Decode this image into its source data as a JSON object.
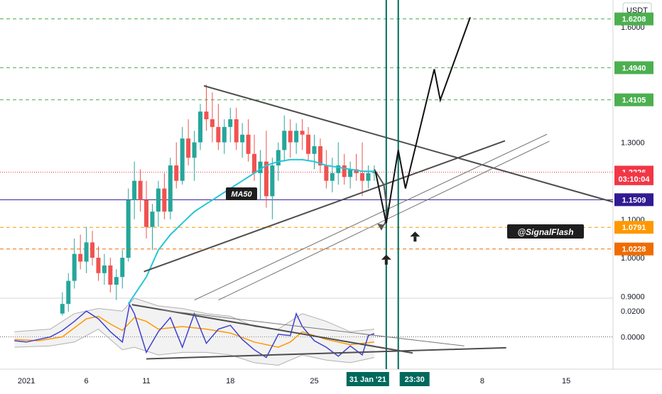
{
  "chart_data": {
    "type": "candlestick",
    "currency": "USDT",
    "price_axis": {
      "ticks": [
        {
          "label": "1.6000",
          "value": 1.6
        },
        {
          "label": "1.3000",
          "value": 1.3
        },
        {
          "label": "1.1000",
          "value": 1.1
        },
        {
          "label": "1.0000",
          "value": 1.0
        },
        {
          "label": "0.9000",
          "value": 0.9
        }
      ],
      "range": [
        0.895,
        1.67
      ]
    },
    "oscillator_axis": {
      "ticks": [
        {
          "label": "0.0200",
          "value": 0.02
        },
        {
          "label": "0.0000",
          "value": 0.0
        }
      ],
      "range": [
        -0.025,
        0.03
      ]
    },
    "time_axis": {
      "ticks": [
        {
          "label": "2021",
          "day": 1
        },
        {
          "label": "6",
          "day": 6
        },
        {
          "label": "11",
          "day": 11
        },
        {
          "label": "18",
          "day": 18
        },
        {
          "label": "25",
          "day": 25
        },
        {
          "label": "8",
          "day": 39
        },
        {
          "label": "15",
          "day": 46
        }
      ],
      "range_days": [
        -1.2,
        49.9
      ]
    },
    "price_levels": [
      {
        "label": "1.6208",
        "value": 1.6208,
        "color": "#4caf50",
        "style": "dashed"
      },
      {
        "label": "1.4940",
        "value": 1.494,
        "color": "#4caf50",
        "style": "dashed"
      },
      {
        "label": "1.4105",
        "value": 1.4105,
        "color": "#4caf50",
        "style": "dashed"
      },
      {
        "label": "1.2226",
        "value": 1.2226,
        "color": "#f23645",
        "style": "dotted"
      },
      {
        "label": "03:10:04",
        "value": 1.2053,
        "color": "#f23645",
        "style": "none"
      },
      {
        "label": "1.1509",
        "value": 1.1509,
        "color": "#311b92",
        "style": "solid"
      },
      {
        "label": "1.0791",
        "value": 1.0791,
        "color": "#ff9800",
        "style": "dashed"
      },
      {
        "label": "1.0228",
        "value": 1.0228,
        "color": "#ef6c00",
        "style": "dashed"
      }
    ],
    "vertical_markers": [
      {
        "label": "31 Jan '21",
        "day": 31,
        "color": "#00695c"
      },
      {
        "label": "23:30",
        "day": 32,
        "color": "#00695c"
      }
    ],
    "indicator_label": "MA50",
    "watermark": "@SignalFlash",
    "moving_average_ma50": [
      [
        9.5,
        0.88
      ],
      [
        11,
        0.95
      ],
      [
        12,
        1.02
      ],
      [
        13,
        1.06
      ],
      [
        14,
        1.09
      ],
      [
        15,
        1.12
      ],
      [
        16,
        1.14
      ],
      [
        17,
        1.16
      ],
      [
        18,
        1.18
      ],
      [
        19,
        1.2
      ],
      [
        20,
        1.22
      ],
      [
        21,
        1.24
      ],
      [
        22,
        1.25
      ],
      [
        23,
        1.255
      ],
      [
        24,
        1.255
      ],
      [
        25,
        1.25
      ],
      [
        26,
        1.24
      ],
      [
        27,
        1.235
      ],
      [
        28,
        1.23
      ],
      [
        29,
        1.225
      ],
      [
        30,
        1.225
      ]
    ],
    "trendlines": [
      {
        "from": [
          15.8,
          1.447
        ],
        "to": [
          49.9,
          1.145
        ],
        "color": "#4d4d4d"
      },
      {
        "from": [
          10.8,
          0.964
        ],
        "to": [
          40.9,
          1.304
        ],
        "color": "#4d4d4d"
      },
      {
        "from": [
          15.0,
          0.89
        ],
        "to": [
          44.4,
          1.321
        ],
        "color": "#707070"
      },
      {
        "from": [
          17.0,
          0.89
        ],
        "to": [
          44.6,
          1.303
        ],
        "color": "#707070"
      }
    ],
    "projection_path": [
      [
        30.1,
        1.224
      ],
      [
        31.0,
        1.09
      ],
      [
        32.0,
        1.28
      ],
      [
        32.6,
        1.18
      ],
      [
        35.0,
        1.49
      ],
      [
        35.5,
        1.41
      ],
      [
        38.0,
        1.625
      ]
    ],
    "forecast_curve": [
      [
        30.0,
        1.23
      ],
      [
        30.8,
        1.19
      ],
      [
        31.1,
        1.12
      ],
      [
        30.9,
        1.09
      ],
      [
        30.6,
        1.078
      ]
    ],
    "arrow_markers": [
      {
        "day": 31.0,
        "value": 0.995
      },
      {
        "day": 33.4,
        "value": 1.055
      }
    ],
    "candles": [
      [
        4.0,
        0.855,
        0.91,
        0.85,
        0.88
      ],
      [
        4.5,
        0.88,
        0.96,
        0.86,
        0.94
      ],
      [
        5.0,
        0.94,
        1.05,
        0.92,
        1.01
      ],
      [
        5.5,
        1.01,
        1.06,
        0.97,
        0.99
      ],
      [
        6.0,
        0.99,
        1.08,
        0.96,
        1.04
      ],
      [
        6.5,
        1.04,
        1.07,
        0.98,
        1.0
      ],
      [
        7.0,
        1.0,
        1.03,
        0.94,
        0.96
      ],
      [
        7.5,
        0.96,
        1.01,
        0.93,
        0.98
      ],
      [
        8.0,
        0.98,
        1.0,
        0.91,
        0.93
      ],
      [
        8.5,
        0.93,
        0.97,
        0.89,
        0.95
      ],
      [
        9.0,
        0.95,
        1.02,
        0.92,
        1.0
      ],
      [
        9.5,
        1.0,
        1.18,
        0.99,
        1.15
      ],
      [
        10.0,
        1.15,
        1.25,
        1.1,
        1.2
      ],
      [
        10.5,
        1.2,
        1.23,
        1.12,
        1.15
      ],
      [
        11.0,
        1.15,
        1.2,
        1.05,
        1.08
      ],
      [
        11.5,
        1.08,
        1.14,
        1.02,
        1.12
      ],
      [
        12.0,
        1.12,
        1.2,
        1.08,
        1.18
      ],
      [
        12.5,
        1.18,
        1.22,
        1.1,
        1.12
      ],
      [
        13.0,
        1.12,
        1.26,
        1.1,
        1.24
      ],
      [
        13.5,
        1.24,
        1.3,
        1.18,
        1.2
      ],
      [
        14.0,
        1.2,
        1.34,
        1.19,
        1.31
      ],
      [
        14.5,
        1.31,
        1.36,
        1.24,
        1.26
      ],
      [
        15.0,
        1.26,
        1.33,
        1.2,
        1.3
      ],
      [
        15.5,
        1.3,
        1.4,
        1.28,
        1.38
      ],
      [
        16.0,
        1.38,
        1.45,
        1.33,
        1.36
      ],
      [
        16.5,
        1.36,
        1.43,
        1.3,
        1.34
      ],
      [
        17.0,
        1.34,
        1.4,
        1.28,
        1.3
      ],
      [
        17.5,
        1.3,
        1.36,
        1.27,
        1.34
      ],
      [
        18.0,
        1.34,
        1.39,
        1.3,
        1.36
      ],
      [
        18.5,
        1.36,
        1.39,
        1.28,
        1.3
      ],
      [
        19.0,
        1.3,
        1.35,
        1.26,
        1.32
      ],
      [
        19.5,
        1.32,
        1.36,
        1.25,
        1.27
      ],
      [
        20.0,
        1.27,
        1.32,
        1.2,
        1.22
      ],
      [
        20.5,
        1.22,
        1.28,
        1.15,
        1.25
      ],
      [
        21.0,
        1.25,
        1.33,
        1.13,
        1.16
      ],
      [
        21.5,
        1.16,
        1.26,
        1.1,
        1.24
      ],
      [
        22.0,
        1.24,
        1.3,
        1.2,
        1.28
      ],
      [
        22.5,
        1.28,
        1.37,
        1.25,
        1.33
      ],
      [
        23.0,
        1.33,
        1.36,
        1.26,
        1.3
      ],
      [
        23.5,
        1.3,
        1.35,
        1.27,
        1.33
      ],
      [
        24.0,
        1.33,
        1.36,
        1.28,
        1.32
      ],
      [
        24.5,
        1.32,
        1.34,
        1.25,
        1.27
      ],
      [
        25.0,
        1.27,
        1.32,
        1.23,
        1.29
      ],
      [
        25.5,
        1.29,
        1.31,
        1.22,
        1.24
      ],
      [
        26.0,
        1.24,
        1.28,
        1.18,
        1.2
      ],
      [
        26.5,
        1.2,
        1.26,
        1.17,
        1.22
      ],
      [
        27.0,
        1.22,
        1.3,
        1.19,
        1.24
      ],
      [
        27.5,
        1.24,
        1.27,
        1.19,
        1.21
      ],
      [
        28.0,
        1.21,
        1.25,
        1.18,
        1.23
      ],
      [
        28.5,
        1.23,
        1.27,
        1.2,
        1.22
      ],
      [
        29.0,
        1.22,
        1.3,
        1.16,
        1.2
      ],
      [
        29.5,
        1.2,
        1.24,
        1.18,
        1.22
      ],
      [
        30.0,
        1.22,
        1.24,
        1.2,
        1.223
      ]
    ],
    "oscillator_line": [
      [
        0,
        -0.003
      ],
      [
        1,
        -0.004
      ],
      [
        2,
        -0.002
      ],
      [
        3,
        0.0
      ],
      [
        4,
        0.005
      ],
      [
        5,
        0.012
      ],
      [
        6,
        0.02
      ],
      [
        7,
        0.014
      ],
      [
        8,
        0.004
      ],
      [
        9,
        -0.004
      ],
      [
        9.6,
        0.025
      ],
      [
        10,
        0.018
      ],
      [
        11,
        -0.012
      ],
      [
        12,
        0.004
      ],
      [
        13,
        0.015
      ],
      [
        14,
        -0.008
      ],
      [
        15,
        0.018
      ],
      [
        16,
        -0.005
      ],
      [
        17,
        0.006
      ],
      [
        18,
        0.009
      ],
      [
        19,
        -0.002
      ],
      [
        20,
        -0.01
      ],
      [
        21,
        -0.016
      ],
      [
        22,
        0.002
      ],
      [
        23,
        0.001
      ],
      [
        23.5,
        0.018
      ],
      [
        24,
        0.008
      ],
      [
        25,
        -0.003
      ],
      [
        26,
        -0.008
      ],
      [
        27,
        -0.015
      ],
      [
        28,
        -0.007
      ],
      [
        29,
        -0.014
      ],
      [
        29.5,
        0.001
      ],
      [
        30,
        0.0025
      ]
    ],
    "oscillator_signal": [
      [
        0,
        -0.002
      ],
      [
        2,
        -0.003
      ],
      [
        4,
        0.0
      ],
      [
        6,
        0.014
      ],
      [
        7,
        0.016
      ],
      [
        8,
        0.01
      ],
      [
        9,
        0.005
      ],
      [
        10,
        0.015
      ],
      [
        11,
        0.012
      ],
      [
        12,
        0.006
      ],
      [
        14,
        0.008
      ],
      [
        16,
        0.006
      ],
      [
        18,
        0.003
      ],
      [
        20,
        -0.004
      ],
      [
        22,
        -0.008
      ],
      [
        23,
        -0.004
      ],
      [
        24,
        0.004
      ],
      [
        26,
        -0.002
      ],
      [
        28,
        -0.006
      ],
      [
        30,
        -0.004
      ]
    ],
    "oscillator_band_upper": [
      [
        0,
        0.004
      ],
      [
        3,
        0.006
      ],
      [
        5,
        0.018
      ],
      [
        7,
        0.022
      ],
      [
        9,
        0.02
      ],
      [
        10,
        0.03
      ],
      [
        12,
        0.024
      ],
      [
        14,
        0.022
      ],
      [
        16,
        0.018
      ],
      [
        18,
        0.016
      ],
      [
        20,
        0.008
      ],
      [
        22,
        0.006
      ],
      [
        24,
        0.018
      ],
      [
        26,
        0.012
      ],
      [
        28,
        0.004
      ],
      [
        30,
        0.006
      ]
    ],
    "oscillator_band_lower": [
      [
        0,
        -0.008
      ],
      [
        3,
        -0.007
      ],
      [
        5,
        -0.004
      ],
      [
        7,
        0.006
      ],
      [
        9,
        -0.01
      ],
      [
        10,
        -0.008
      ],
      [
        12,
        -0.014
      ],
      [
        14,
        -0.012
      ],
      [
        16,
        -0.012
      ],
      [
        18,
        -0.014
      ],
      [
        20,
        -0.02
      ],
      [
        22,
        -0.022
      ],
      [
        24,
        -0.014
      ],
      [
        26,
        -0.018
      ],
      [
        28,
        -0.02
      ],
      [
        30,
        -0.016
      ]
    ],
    "oscillator_trendlines": [
      {
        "from": [
          9.8,
          0.025
        ],
        "to": [
          33.2,
          -0.0125
        ],
        "color": "#4d4d4d"
      },
      {
        "from": [
          11.0,
          -0.017
        ],
        "to": [
          41.0,
          -0.0084
        ],
        "color": "#4d4d4d"
      },
      {
        "from": [
          12.0,
          0.021
        ],
        "to": [
          37.5,
          -0.007
        ],
        "color": "#777777"
      }
    ]
  }
}
